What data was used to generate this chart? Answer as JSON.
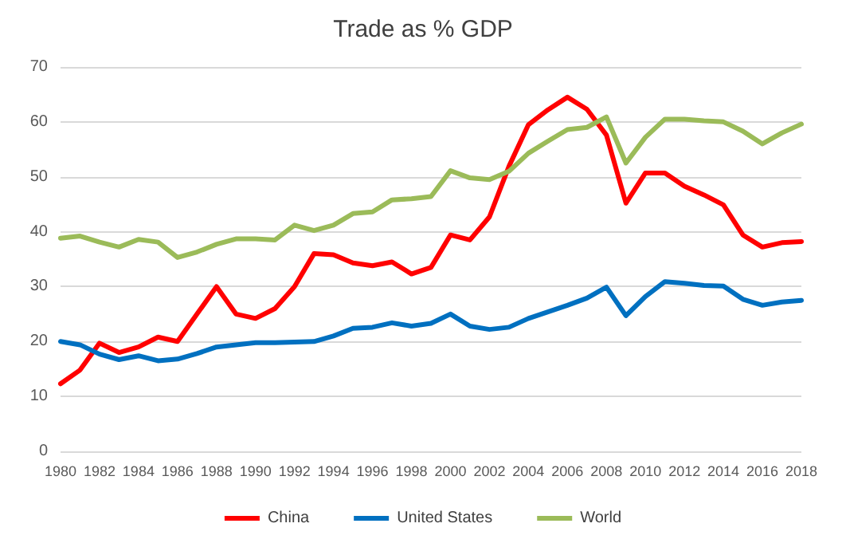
{
  "chart_data": {
    "type": "line",
    "title": "Trade as % GDP",
    "categories": [
      "1980",
      null,
      "1982",
      null,
      "1984",
      null,
      "1986",
      null,
      "1988",
      null,
      "1990",
      null,
      "1992",
      null,
      "1994",
      null,
      "1996",
      null,
      "1998",
      null,
      "2000",
      null,
      "2002",
      null,
      "2004",
      null,
      "2006",
      null,
      "2008",
      null,
      "2010",
      null,
      "2012",
      null,
      "2014",
      null,
      "2016",
      null,
      "2018"
    ],
    "series": [
      {
        "name": "China",
        "color": "#ff0000",
        "values": [
          12.3,
          14.8,
          19.7,
          18.0,
          19.0,
          20.8,
          20.0,
          25.0,
          30.0,
          25.0,
          24.2,
          26.0,
          30.0,
          36.0,
          35.8,
          34.3,
          33.8,
          34.5,
          32.3,
          33.5,
          39.4,
          38.5,
          42.7,
          51.9,
          59.5,
          62.2,
          64.5,
          62.3,
          57.6,
          45.2,
          50.7,
          50.7,
          48.3,
          46.7,
          44.9,
          39.4,
          37.2,
          38.0,
          38.2
        ]
      },
      {
        "name": "United States",
        "color": "#0070c0",
        "values": [
          20.0,
          19.4,
          17.7,
          16.7,
          17.4,
          16.5,
          16.8,
          17.8,
          19.0,
          19.4,
          19.8,
          19.8,
          19.9,
          20.0,
          21.0,
          22.4,
          22.6,
          23.4,
          22.8,
          23.3,
          25.0,
          22.8,
          22.2,
          22.6,
          24.2,
          25.4,
          26.6,
          27.9,
          29.9,
          24.7,
          28.2,
          30.9,
          30.6,
          30.2,
          30.1,
          27.7,
          26.6,
          27.2,
          27.5
        ]
      },
      {
        "name": "World",
        "color": "#9bbb59",
        "values": [
          38.8,
          39.2,
          38.1,
          37.2,
          38.6,
          38.1,
          35.3,
          36.3,
          37.7,
          38.7,
          38.7,
          38.5,
          41.2,
          40.2,
          41.2,
          43.3,
          43.6,
          45.8,
          46.0,
          46.4,
          51.1,
          49.8,
          49.5,
          51.0,
          54.3,
          56.5,
          58.6,
          59.0,
          60.9,
          52.5,
          57.2,
          60.5,
          60.5,
          60.2,
          60.0,
          58.3,
          56.0,
          58.0,
          59.6
        ]
      }
    ],
    "ylim": [
      0,
      70
    ],
    "yticks": [
      0,
      10,
      20,
      30,
      40,
      50,
      60,
      70
    ],
    "grid": "y",
    "legend": "bottom",
    "marker": "none",
    "line_style": "solid"
  }
}
